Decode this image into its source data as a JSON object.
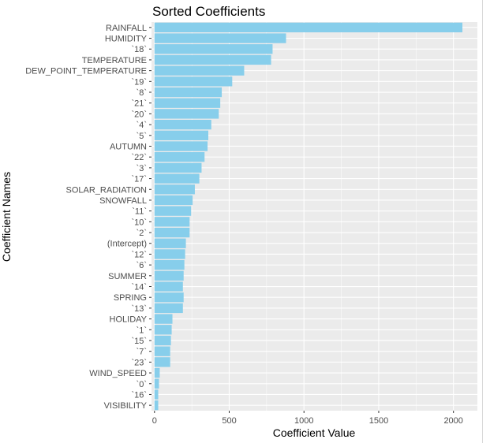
{
  "chart_data": {
    "type": "bar",
    "orientation": "horizontal",
    "title": "Sorted Coefficients",
    "xlabel": "Coefficient Value",
    "ylabel": "Coefficient Names",
    "xlim": [
      -20,
      2160
    ],
    "xticks": [
      0,
      500,
      1000,
      1500,
      2000
    ],
    "grid": true,
    "categories": [
      "RAINFALL",
      "HUMIDITY",
      "`18`",
      "TEMPERATURE",
      "DEW_POINT_TEMPERATURE",
      "`19`",
      "`8`",
      "`21`",
      "`20`",
      "`4`",
      "`5`",
      "AUTUMN",
      "`22`",
      "`3`",
      "`17`",
      "SOLAR_RADIATION",
      "SNOWFALL",
      "`11`",
      "`10`",
      "`2`",
      "(Intercept)",
      "`12`",
      "`6`",
      "SUMMER",
      "`14`",
      "SPRING",
      "`13`",
      "HOLIDAY",
      "`1`",
      "`15`",
      "`7`",
      "`23`",
      "WIND_SPEED",
      "`0`",
      "`16`",
      "VISIBILITY"
    ],
    "values": [
      2060,
      880,
      790,
      780,
      600,
      520,
      450,
      440,
      430,
      380,
      360,
      355,
      335,
      315,
      300,
      270,
      255,
      245,
      235,
      235,
      210,
      205,
      200,
      195,
      190,
      195,
      190,
      120,
      115,
      110,
      105,
      105,
      35,
      30,
      25,
      25
    ]
  },
  "colors": {
    "bar": "#87ceeb",
    "panel": "#ebebeb",
    "gridline": "#ffffff",
    "tick_text": "#4d4d4d"
  }
}
